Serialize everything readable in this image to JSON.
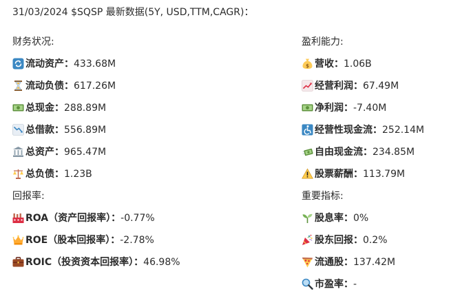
{
  "title": "31/03/2024 $SQSP 最新数据(5Y, USD,TTM,CAGR)：",
  "financial": {
    "heading": "财务状况:",
    "items": [
      {
        "icon": "refresh-icon",
        "label": "流动资产：",
        "value": "433.68M"
      },
      {
        "icon": "hourglass-icon",
        "label": "流动负债：",
        "value": "617.26M"
      },
      {
        "icon": "cash-icon",
        "label": "总现金：",
        "value": "288.89M"
      },
      {
        "icon": "chart-down-icon",
        "label": "总借款：",
        "value": "556.89M"
      },
      {
        "icon": "bank-icon",
        "label": "总资产：",
        "value": "965.47M"
      },
      {
        "icon": "scale-icon",
        "label": "总负债：",
        "value": "1.23B"
      }
    ]
  },
  "returns": {
    "heading": "回报率:",
    "items": [
      {
        "icon": "factory-icon",
        "label": "ROA（资产回报率）：",
        "value": "-0.77%"
      },
      {
        "icon": "crown-icon",
        "label": "ROE（股本回报率）：",
        "value": "-2.78%"
      },
      {
        "icon": "briefcase-icon",
        "label": "ROIC（投资资本回报率）：",
        "value": "46.98%"
      }
    ]
  },
  "profitability": {
    "heading": "盈利能力:",
    "items": [
      {
        "icon": "money-bag-icon",
        "label": "营收：",
        "value": "1.06B"
      },
      {
        "icon": "chart-up-icon",
        "label": "经营利润：",
        "value": "67.49M"
      },
      {
        "icon": "cash-icon",
        "label": "净利润：",
        "value": "-7.40M"
      },
      {
        "icon": "accessible-icon",
        "label": "经营性现金流：",
        "value": "252.14M"
      },
      {
        "icon": "money-wings-icon",
        "label": "自由现金流：",
        "value": "234.85M"
      },
      {
        "icon": "warning-icon",
        "label": "股票薪酬：",
        "value": "113.79M"
      }
    ]
  },
  "indicators": {
    "heading": "重要指标:",
    "items": [
      {
        "icon": "seedling-icon",
        "label": "股息率：",
        "value": "0%"
      },
      {
        "icon": "party-popper-icon",
        "label": "股东回报：",
        "value": "0.2%"
      },
      {
        "icon": "pizza-icon",
        "label": "流通股：",
        "value": "137.42M"
      },
      {
        "icon": "magnifier-icon",
        "label": "市盈率：",
        "value": "-"
      }
    ]
  }
}
